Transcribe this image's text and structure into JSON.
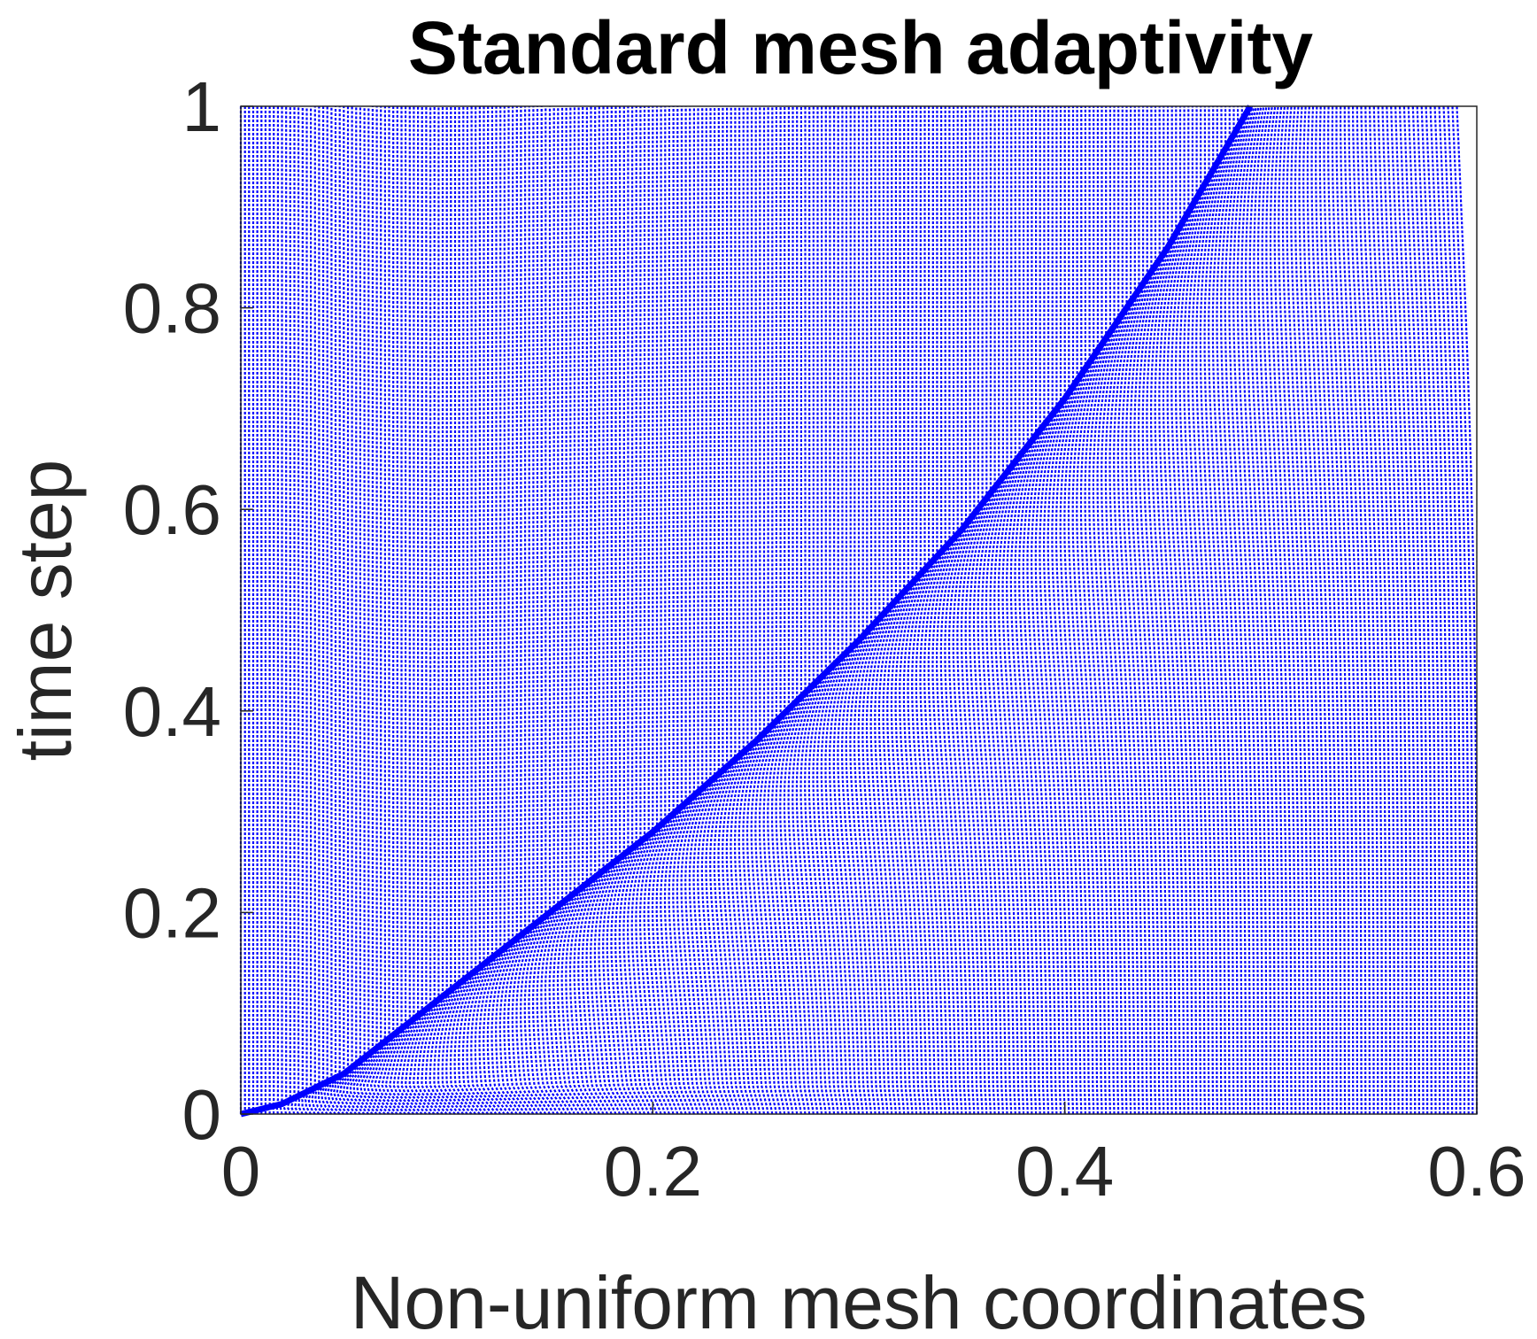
{
  "chart_data": {
    "type": "line",
    "title": "Standard mesh adaptivity",
    "xlabel": "Non-uniform mesh coordinates",
    "ylabel": "time step",
    "xlim": [
      0,
      0.6
    ],
    "ylim": [
      0,
      1
    ],
    "xticks": [
      0,
      0.2,
      0.4,
      0.6
    ],
    "yticks": [
      0,
      0.2,
      0.4,
      0.6,
      0.8,
      1
    ],
    "xtick_labels": [
      "0",
      "0.2",
      "0.4",
      "0.6"
    ],
    "ytick_labels": [
      "0",
      "0.2",
      "0.4",
      "0.6",
      "0.8",
      "1"
    ],
    "grid": false,
    "legend": "none",
    "line_color": "#0000ff",
    "line_style": "dotted",
    "mesh_node_count": 301,
    "initial_mesh_spacing": 0.002,
    "front_curve": {
      "x": [
        0,
        0.02,
        0.05,
        0.1,
        0.15,
        0.2,
        0.25,
        0.3,
        0.35,
        0.4,
        0.45,
        0.49
      ],
      "y": [
        0,
        0.01,
        0.04,
        0.12,
        0.2,
        0.28,
        0.37,
        0.47,
        0.58,
        0.71,
        0.86,
        1.0
      ]
    }
  }
}
